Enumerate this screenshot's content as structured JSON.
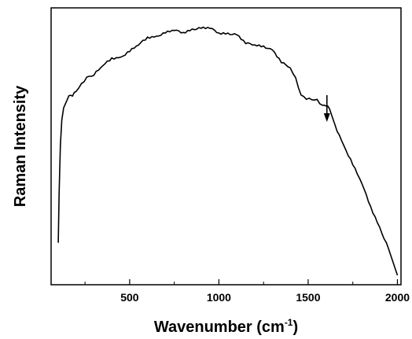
{
  "chart_data": {
    "type": "line",
    "xlabel": "Wavenumber (cm",
    "xlabel_sup": "-1",
    "xlabel_end": ")",
    "ylabel": "Raman Intensity",
    "xlim": [
      60,
      2020
    ],
    "ylim": [
      0,
      1
    ],
    "y_ticks_labeled": false,
    "grid": false,
    "xticks": [
      500,
      1000,
      1500,
      2000
    ],
    "xtick_labels": [
      "500",
      "1000",
      "1500",
      "2000"
    ],
    "series": [
      {
        "color": "#000000",
        "x": [
          100,
          105,
          112,
          120,
          130,
          145,
          160,
          180,
          200,
          230,
          260,
          300,
          350,
          400,
          450,
          500,
          550,
          600,
          650,
          700,
          750,
          800,
          850,
          900,
          950,
          1000,
          1050,
          1100,
          1150,
          1200,
          1250,
          1300,
          1350,
          1400,
          1430,
          1460,
          1490,
          1520,
          1550,
          1580,
          1600,
          1620,
          1650,
          1700,
          1750,
          1800,
          1850,
          1900,
          1950,
          2000
        ],
        "y": [
          0.13,
          0.33,
          0.52,
          0.62,
          0.67,
          0.69,
          0.71,
          0.73,
          0.74,
          0.76,
          0.78,
          0.81,
          0.84,
          0.86,
          0.88,
          0.9,
          0.92,
          0.94,
          0.96,
          0.97,
          0.975,
          0.98,
          0.985,
          0.985,
          0.98,
          0.975,
          0.965,
          0.955,
          0.94,
          0.925,
          0.91,
          0.89,
          0.86,
          0.83,
          0.78,
          0.73,
          0.71,
          0.7,
          0.69,
          0.685,
          0.68,
          0.66,
          0.61,
          0.52,
          0.44,
          0.36,
          0.28,
          0.19,
          0.1,
          0.0
        ]
      }
    ],
    "annotations": [
      {
        "type": "arrow",
        "x": 1605,
        "direction": "down"
      }
    ]
  }
}
